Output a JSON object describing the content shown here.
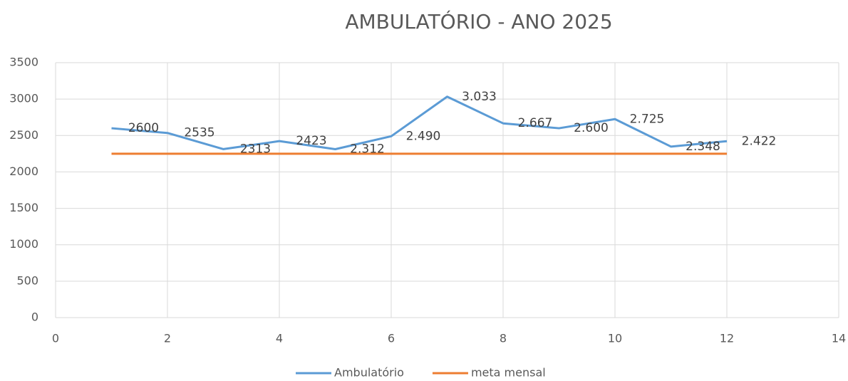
{
  "chart_data": {
    "type": "line",
    "title": "AMBULATÓRIO - ANO 2025",
    "x": [
      1,
      2,
      3,
      4,
      5,
      6,
      7,
      8,
      9,
      10,
      11,
      12
    ],
    "series": [
      {
        "name": "Ambulatório",
        "color": "#5b9bd5",
        "values": [
          2600,
          2535,
          2313,
          2423,
          2312,
          2490,
          3033,
          2667,
          2600,
          2725,
          2348,
          2422
        ],
        "value_labels": [
          "2600",
          "2535",
          "2313",
          "2423",
          "2.312",
          "2.490",
          "3.033",
          "2.667",
          "2.600",
          "2.725",
          "2.348",
          "2.422"
        ]
      },
      {
        "name": "meta mensal",
        "color": "#ed7d31",
        "values": [
          2250,
          2250,
          2250,
          2250,
          2250,
          2250,
          2250,
          2250,
          2250,
          2250,
          2250,
          2250
        ]
      }
    ],
    "xlim": [
      0,
      14
    ],
    "xticks": [
      0,
      2,
      4,
      6,
      8,
      10,
      12,
      14
    ],
    "ylim": [
      0,
      3500
    ],
    "yticks": [
      0,
      500,
      1000,
      1500,
      2000,
      2500,
      3000,
      3500
    ],
    "grid": true,
    "legend": "bottom"
  }
}
